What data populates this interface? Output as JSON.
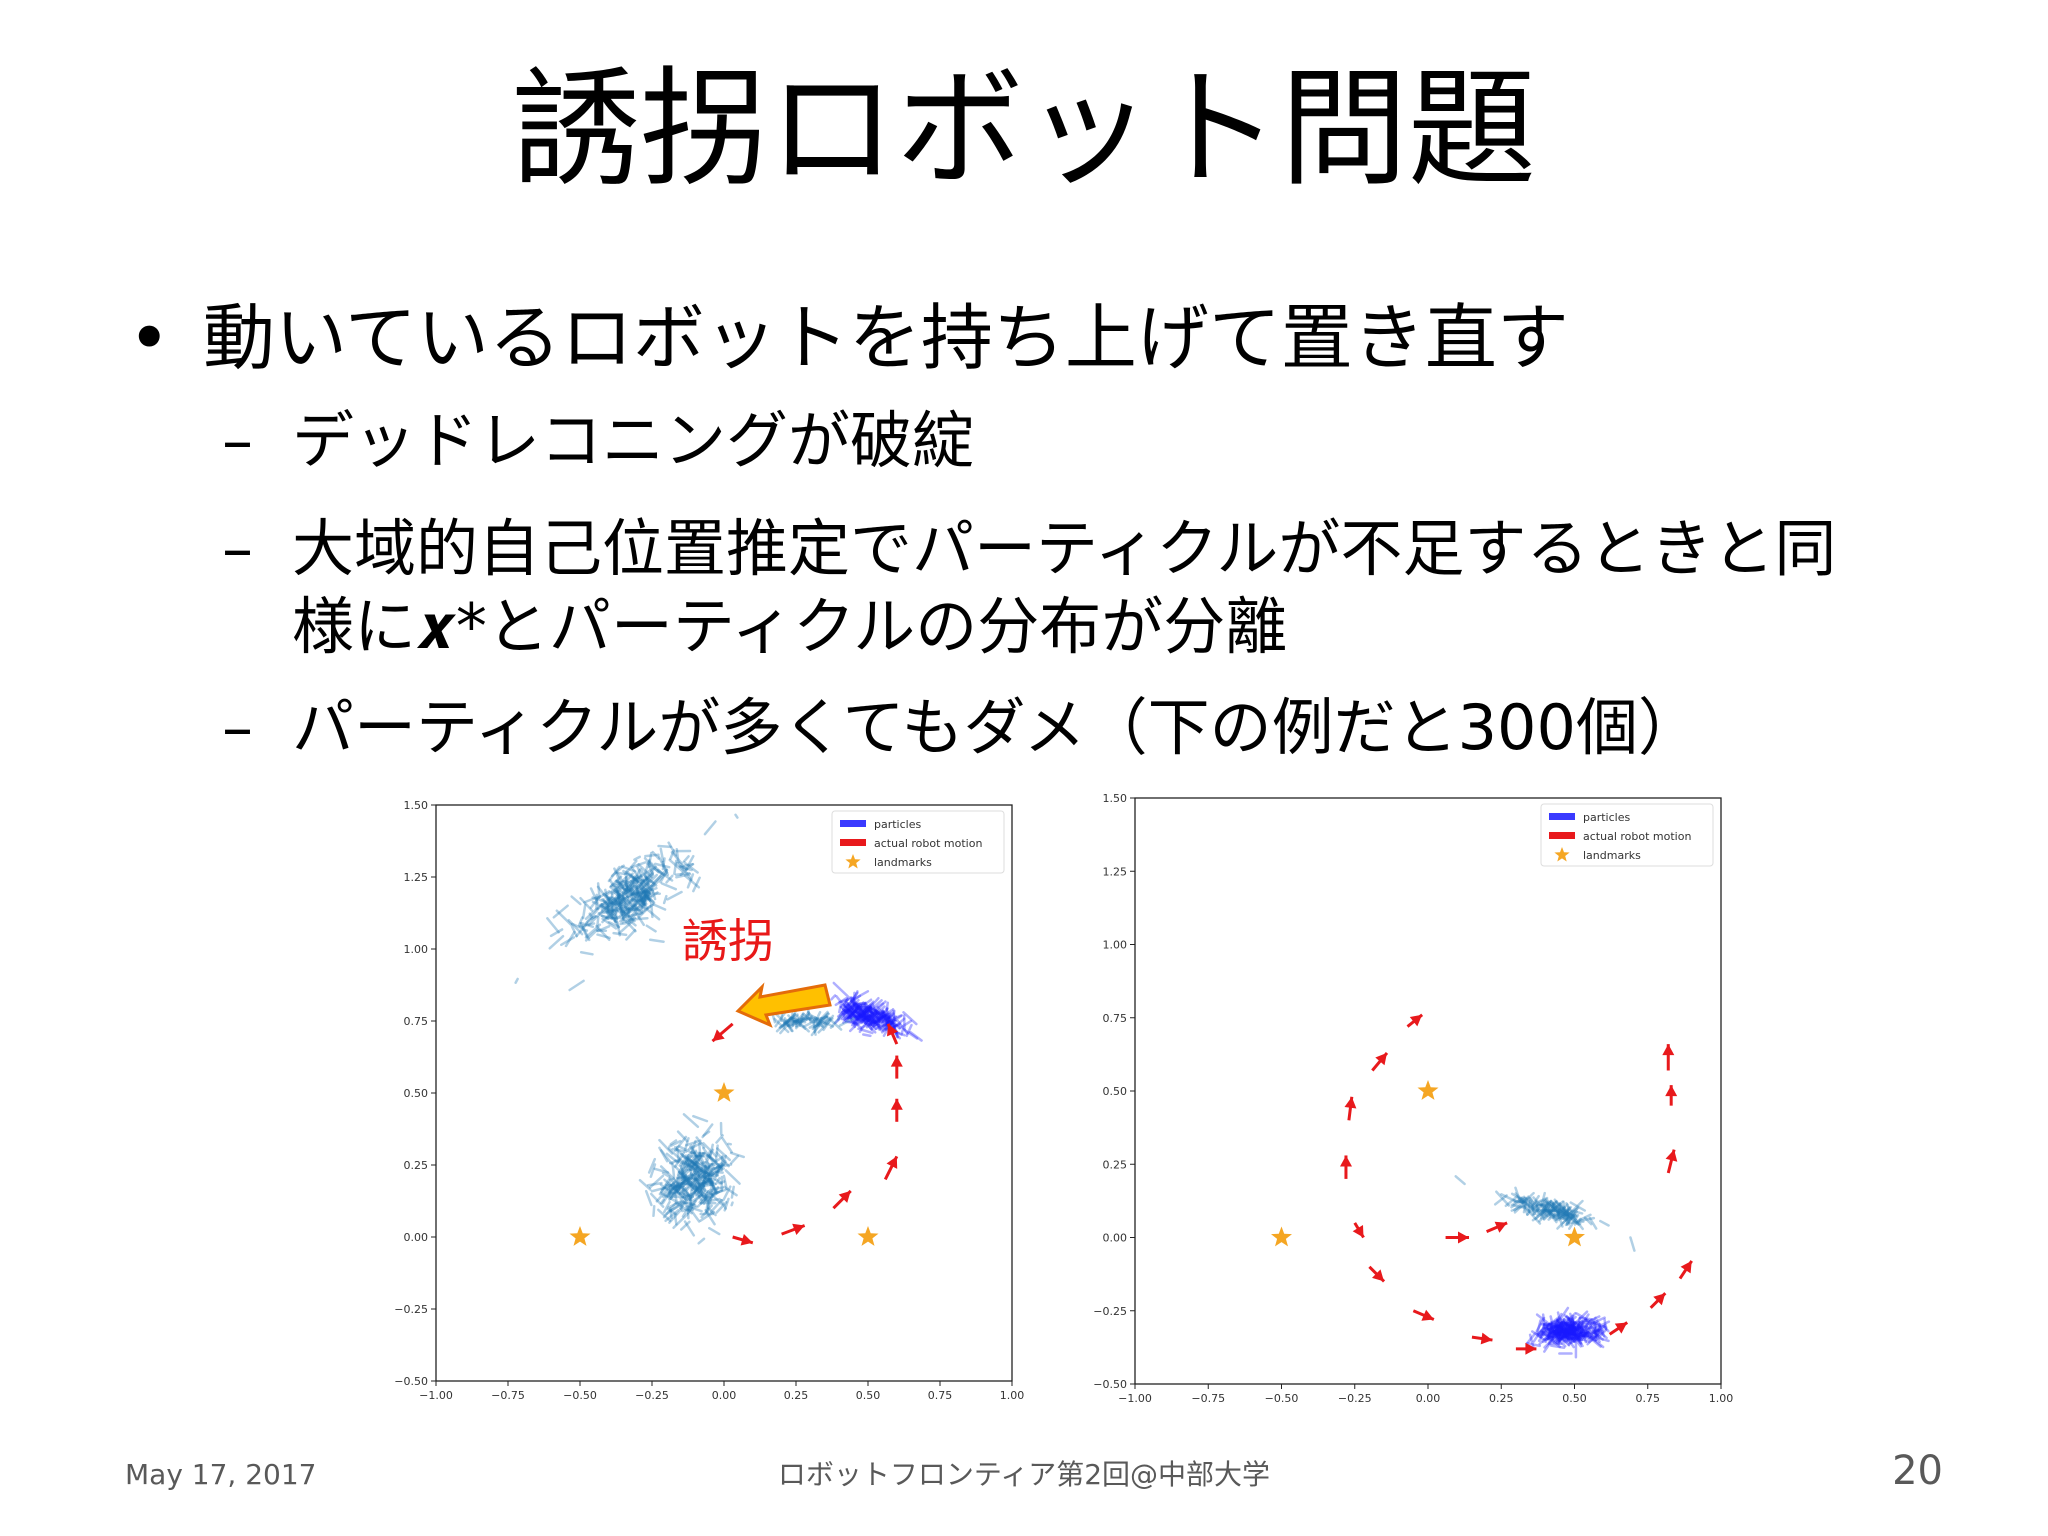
{
  "slide": {
    "title": "誘拐ロボット問題",
    "bullet": "動いているロボットを持ち上げて置き直す",
    "sub_bullets": [
      {
        "dash": "–",
        "line1": "デッドレコニングが破綻",
        "line2": ""
      },
      {
        "dash": "–",
        "line1": "大域的自己位置推定でパーティクルが不足するときと同",
        "line2": "様に𝒙*とパーティクルの分布が分離"
      },
      {
        "dash": "–",
        "line1": "パーティクルが多くてもダメ（下の例だと300個）",
        "line2": ""
      }
    ],
    "annotation": "誘拐",
    "footer": {
      "date": "May 17, 2017",
      "center": "ロボットフロンティア第2回@中部大学",
      "page": "20"
    }
  },
  "chart_data": [
    {
      "type": "scatter",
      "legend": [
        "particles",
        "actual robot motion",
        "landmarks"
      ],
      "legend_position": "top-right",
      "xlim": [
        -1.0,
        1.0
      ],
      "ylim": [
        -0.5,
        1.5
      ],
      "xticks": [
        "−1.00",
        "−0.75",
        "−0.50",
        "−0.25",
        "0.00",
        "0.25",
        "0.50",
        "0.75",
        "1.00"
      ],
      "yticks": [
        "1.50",
        "1.25",
        "1.00",
        "0.75",
        "0.50",
        "0.25",
        "0.00",
        "−0.25",
        "−0.50"
      ],
      "landmarks": [
        [
          -0.5,
          0.0
        ],
        [
          0.0,
          0.5
        ],
        [
          0.5,
          0.0
        ]
      ],
      "particle_clusters": [
        {
          "center": [
            -0.33,
            1.18
          ],
          "spread": [
            0.12,
            0.07
          ],
          "angle": 35,
          "color": "#1f77b4",
          "count": 300
        },
        {
          "center": [
            -0.1,
            0.2
          ],
          "spread": [
            0.06,
            0.12
          ],
          "angle": -20,
          "color": "#1f77b4",
          "count": 300
        },
        {
          "center": [
            0.5,
            0.77
          ],
          "spread": [
            0.06,
            0.035
          ],
          "angle": -20,
          "color": "#1a1aff",
          "count": 200
        },
        {
          "center": [
            0.28,
            0.75
          ],
          "spread": [
            0.05,
            0.02
          ],
          "angle": 0,
          "color": "#1f77b4",
          "count": 60
        }
      ],
      "robot_motion": [
        {
          "from": [
            0.03,
            -0.0
          ],
          "to": [
            0.1,
            -0.02
          ]
        },
        {
          "from": [
            0.2,
            0.01
          ],
          "to": [
            0.28,
            0.04
          ]
        },
        {
          "from": [
            0.38,
            0.1
          ],
          "to": [
            0.44,
            0.16
          ]
        },
        {
          "from": [
            0.56,
            0.2
          ],
          "to": [
            0.6,
            0.28
          ]
        },
        {
          "from": [
            0.6,
            0.4
          ],
          "to": [
            0.6,
            0.48
          ]
        },
        {
          "from": [
            0.6,
            0.55
          ],
          "to": [
            0.6,
            0.63
          ]
        },
        {
          "from": [
            0.6,
            0.67
          ],
          "to": [
            0.57,
            0.74
          ]
        },
        {
          "from": [
            0.03,
            0.74
          ],
          "to": [
            -0.04,
            0.68
          ]
        }
      ]
    },
    {
      "type": "scatter",
      "legend": [
        "particles",
        "actual robot motion",
        "landmarks"
      ],
      "legend_position": "top-right",
      "xlim": [
        -1.0,
        1.0
      ],
      "ylim": [
        -0.5,
        1.5
      ],
      "xticks": [
        "−1.00",
        "−0.75",
        "−0.50",
        "−0.25",
        "0.00",
        "0.25",
        "0.50",
        "0.75",
        "1.00"
      ],
      "yticks": [
        "1.50",
        "1.25",
        "1.00",
        "0.75",
        "0.50",
        "0.25",
        "0.00",
        "−0.25",
        "−0.50"
      ],
      "landmarks": [
        [
          -0.5,
          0.0
        ],
        [
          0.0,
          0.5
        ],
        [
          0.5,
          0.0
        ]
      ],
      "particle_clusters": [
        {
          "center": [
            0.42,
            0.09
          ],
          "spread": [
            0.08,
            0.025
          ],
          "angle": -15,
          "color": "#1f77b4",
          "count": 120
        },
        {
          "center": [
            0.48,
            -0.32
          ],
          "spread": [
            0.055,
            0.035
          ],
          "angle": 0,
          "color": "#1a1aff",
          "count": 250
        }
      ],
      "robot_motion": [
        {
          "from": [
            -0.07,
            0.72
          ],
          "to": [
            -0.02,
            0.76
          ]
        },
        {
          "from": [
            -0.19,
            0.57
          ],
          "to": [
            -0.14,
            0.63
          ]
        },
        {
          "from": [
            -0.27,
            0.4
          ],
          "to": [
            -0.26,
            0.48
          ]
        },
        {
          "from": [
            -0.28,
            0.2
          ],
          "to": [
            -0.28,
            0.28
          ]
        },
        {
          "from": [
            -0.25,
            0.05
          ],
          "to": [
            -0.22,
            0.0
          ]
        },
        {
          "from": [
            0.06,
            0.0
          ],
          "to": [
            0.14,
            0.0
          ]
        },
        {
          "from": [
            0.2,
            0.02
          ],
          "to": [
            0.27,
            0.05
          ]
        },
        {
          "from": [
            0.83,
            0.45
          ],
          "to": [
            0.83,
            0.52
          ]
        },
        {
          "from": [
            0.82,
            0.57
          ],
          "to": [
            0.82,
            0.66
          ]
        },
        {
          "from": [
            0.82,
            0.22
          ],
          "to": [
            0.84,
            0.3
          ]
        },
        {
          "from": [
            -0.2,
            -0.1
          ],
          "to": [
            -0.15,
            -0.15
          ]
        },
        {
          "from": [
            -0.05,
            -0.25
          ],
          "to": [
            0.02,
            -0.28
          ]
        },
        {
          "from": [
            0.15,
            -0.34
          ],
          "to": [
            0.22,
            -0.35
          ]
        },
        {
          "from": [
            0.3,
            -0.38
          ],
          "to": [
            0.37,
            -0.38
          ]
        },
        {
          "from": [
            0.62,
            -0.33
          ],
          "to": [
            0.68,
            -0.29
          ]
        },
        {
          "from": [
            0.76,
            -0.24
          ],
          "to": [
            0.81,
            -0.19
          ]
        },
        {
          "from": [
            0.86,
            -0.14
          ],
          "to": [
            0.9,
            -0.08
          ]
        }
      ]
    }
  ]
}
